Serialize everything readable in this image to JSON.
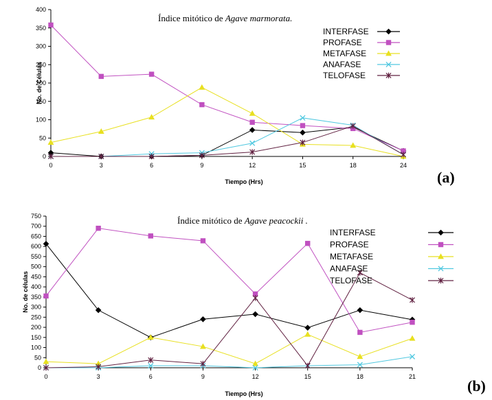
{
  "chart_data": [
    {
      "type": "line",
      "title": "Índice mitótico de ",
      "title_italic": "Agave marmorata.",
      "xlabel": "Tiempo (Hrs)",
      "ylabel": "No. de Células",
      "panel_label": "(a)",
      "categories": [
        "0",
        "3",
        "6",
        "9",
        "12",
        "15",
        "18",
        "24"
      ],
      "ylim": [
        0,
        400
      ],
      "yticks": [
        0,
        50,
        100,
        150,
        200,
        250,
        300,
        350,
        400
      ],
      "legend_position": "top-right",
      "series": [
        {
          "name": "INTERFASE",
          "color": "#000000",
          "marker": "diamond",
          "values": [
            10,
            0,
            0,
            3,
            72,
            65,
            80,
            15
          ]
        },
        {
          "name": "PROFASE",
          "color": "#c050c0",
          "marker": "square",
          "values": [
            358,
            218,
            224,
            141,
            93,
            84,
            76,
            15
          ]
        },
        {
          "name": "METAFASE",
          "color": "#e8e020",
          "marker": "triangle",
          "values": [
            38,
            68,
            107,
            188,
            117,
            33,
            30,
            0
          ]
        },
        {
          "name": "ANAFASE",
          "color": "#50c8e0",
          "marker": "x",
          "values": [
            0,
            0,
            7,
            10,
            36,
            105,
            85,
            5
          ]
        },
        {
          "name": "TELOFASE",
          "color": "#602040",
          "marker": "star",
          "values": [
            0,
            0,
            0,
            3,
            12,
            38,
            83,
            5
          ]
        }
      ]
    },
    {
      "type": "line",
      "title": "Índice mitótico de ",
      "title_italic": "Agave peacockii .",
      "xlabel": "Tiempo (Hrs)",
      "ylabel": "No. de células",
      "panel_label": "(b)",
      "categories": [
        "0",
        "3",
        "6",
        "9",
        "12",
        "15",
        "18",
        "21"
      ],
      "ylim": [
        0,
        750
      ],
      "yticks": [
        0,
        50,
        100,
        150,
        200,
        250,
        300,
        350,
        400,
        450,
        500,
        550,
        600,
        650,
        700,
        750
      ],
      "legend_position": "top-right",
      "series": [
        {
          "name": "INTERFASE",
          "color": "#000000",
          "marker": "diamond",
          "values": [
            613,
            285,
            150,
            240,
            265,
            198,
            285,
            238
          ]
        },
        {
          "name": "PROFASE",
          "color": "#c050c0",
          "marker": "square",
          "values": [
            355,
            690,
            652,
            628,
            365,
            615,
            175,
            225
          ]
        },
        {
          "name": "METAFASE",
          "color": "#e8e020",
          "marker": "triangle",
          "values": [
            30,
            20,
            150,
            105,
            20,
            165,
            55,
            145
          ]
        },
        {
          "name": "ANAFASE",
          "color": "#50c8e0",
          "marker": "x",
          "values": [
            0,
            0,
            10,
            10,
            0,
            10,
            15,
            55
          ]
        },
        {
          "name": "TELOFASE",
          "color": "#602040",
          "marker": "star",
          "values": [
            0,
            5,
            38,
            20,
            345,
            10,
            470,
            335
          ]
        }
      ]
    }
  ]
}
